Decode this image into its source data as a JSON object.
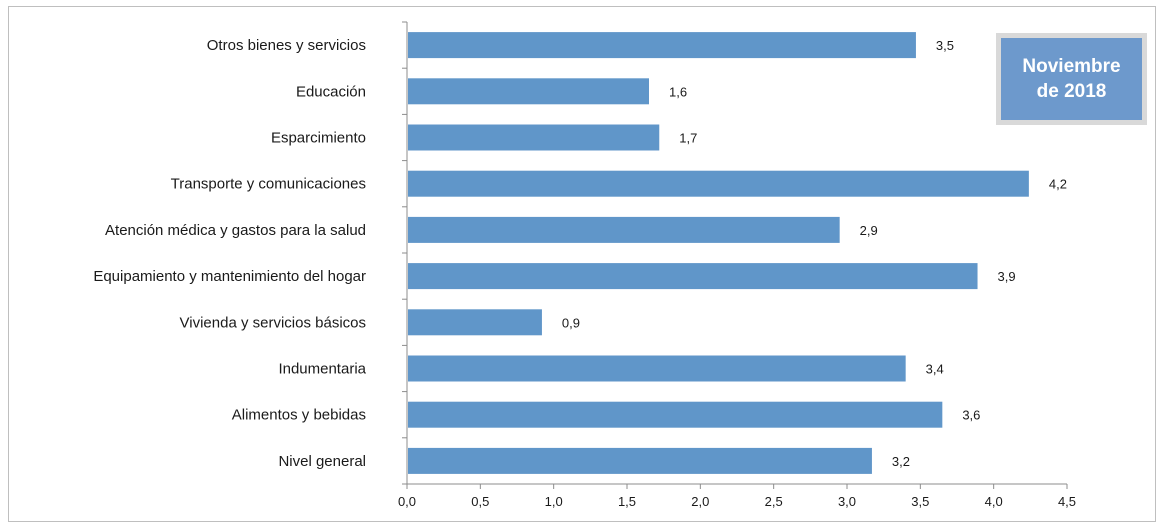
{
  "chart_data": {
    "type": "bar",
    "orientation": "horizontal",
    "categories": [
      "Otros bienes y servicios",
      "Educación",
      "Esparcimiento",
      "Transporte y comunicaciones",
      "Atención médica y gastos para la salud",
      "Equipamiento y  mantenimiento del hogar",
      "Vivienda y servicios básicos",
      "Indumentaria",
      "Alimentos y bebidas",
      "Nivel  general"
    ],
    "values": [
      3.47,
      1.65,
      1.72,
      4.24,
      2.95,
      3.89,
      0.92,
      3.4,
      3.65,
      3.17
    ],
    "data_labels": [
      "3,5",
      "1,6",
      "1,7",
      "4,2",
      "2,9",
      "3,9",
      "0,9",
      "3,4",
      "3,6",
      "3,2"
    ],
    "xlim": [
      0,
      4.5
    ],
    "xticks": [
      0,
      0.5,
      1.0,
      1.5,
      2.0,
      2.5,
      3.0,
      3.5,
      4.0,
      4.5
    ],
    "xtick_labels": [
      "0,0",
      "0,5",
      "1,0",
      "1,5",
      "2,0",
      "2,5",
      "3,0",
      "3,5",
      "4,0",
      "4,5"
    ],
    "grid": false,
    "bar_color": "#6096c9",
    "badge": {
      "line1": "Noviembre",
      "line2": "de 2018",
      "color": "#6d99cc"
    }
  }
}
